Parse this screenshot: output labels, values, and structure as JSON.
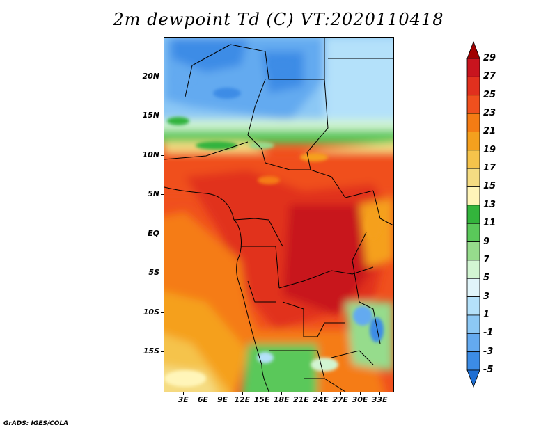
{
  "title": "2m dewpoint Td (C) VT:2020110418",
  "footer": "GrADS: IGES/COLA",
  "map": {
    "projection": "latlon",
    "lon_range": [
      0,
      35
    ],
    "lat_range": [
      -20,
      25
    ],
    "lat_ticks": [
      {
        "value": 20,
        "label": "20N"
      },
      {
        "value": 15,
        "label": "15N"
      },
      {
        "value": 10,
        "label": "10N"
      },
      {
        "value": 5,
        "label": "5N"
      },
      {
        "value": 0,
        "label": "EQ"
      },
      {
        "value": -5,
        "label": "5S"
      },
      {
        "value": -10,
        "label": "10S"
      },
      {
        "value": -15,
        "label": "15S"
      }
    ],
    "lon_ticks": [
      {
        "value": 3,
        "label": "3E"
      },
      {
        "value": 6,
        "label": "6E"
      },
      {
        "value": 9,
        "label": "9E"
      },
      {
        "value": 12,
        "label": "12E"
      },
      {
        "value": 15,
        "label": "15E"
      },
      {
        "value": 18,
        "label": "18E"
      },
      {
        "value": 21,
        "label": "21E"
      },
      {
        "value": 24,
        "label": "24E"
      },
      {
        "value": 27,
        "label": "27E"
      },
      {
        "value": 30,
        "label": "30E"
      },
      {
        "value": 33,
        "label": "33E"
      }
    ]
  },
  "colorbar": {
    "levels": [
      "29",
      "27",
      "25",
      "23",
      "21",
      "19",
      "17",
      "15",
      "13",
      "11",
      "9",
      "7",
      "5",
      "3",
      "1",
      "-1",
      "-3",
      "-5"
    ],
    "colors": [
      "#a00000",
      "#c8141e",
      "#e1301e",
      "#f0501e",
      "#f57c14",
      "#f5a01e",
      "#f5c34b",
      "#f5dc82",
      "#fff5b9",
      "#33b43c",
      "#5ac85a",
      "#96dc8c",
      "#d2f5d2",
      "#e1f5fa",
      "#b4e1fa",
      "#8cc8f5",
      "#64aaf0",
      "#3c8ce6",
      "#1e6ed2"
    ]
  }
}
